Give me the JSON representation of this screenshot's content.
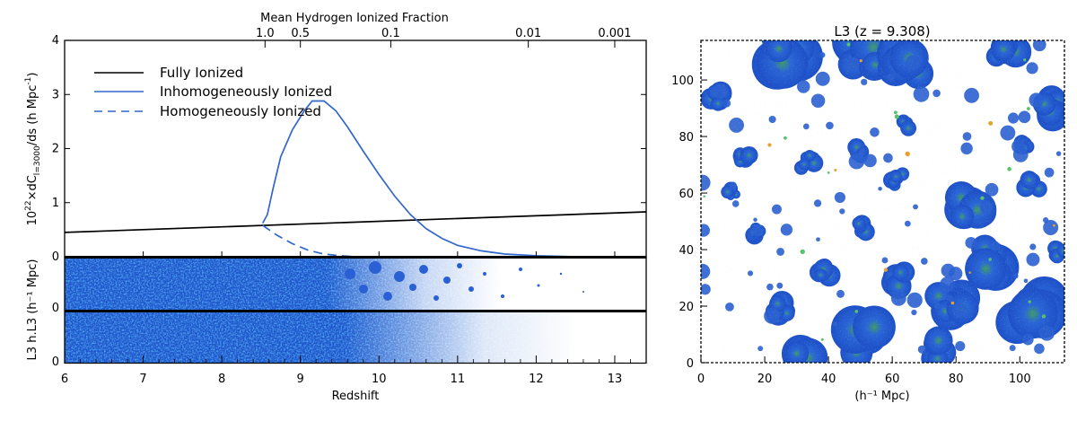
{
  "chart_data": [
    {
      "type": "line",
      "panel": "left-top",
      "xlabel": "Redshift",
      "ylabel": "10²²×dC_l=3000/ds (h Mpc⁻¹)",
      "ylabel_parts": {
        "pre": "10",
        "exp": "22",
        "mid": "×dC",
        "sub": "l=3000",
        "post": "/ds (h Mpc",
        "exp2": "-1",
        "end": ")"
      },
      "top_axis_label": "Mean Hydrogen Ionized Fraction",
      "top_ticks": [
        {
          "label": "1.0",
          "z": 8.55
        },
        {
          "label": "0.5",
          "z": 9.0
        },
        {
          "label": "0.1",
          "z": 10.15
        },
        {
          "label": "0.01",
          "z": 11.9
        },
        {
          "label": "0.001",
          "z": 13.0
        }
      ],
      "xlim": [
        6,
        13.4
      ],
      "ylim": [
        0,
        4
      ],
      "xticks": [
        "6",
        "7",
        "8",
        "9",
        "10",
        "11",
        "12",
        "13"
      ],
      "yticks": [
        "0",
        "1",
        "2",
        "3",
        "4"
      ],
      "series": [
        {
          "name": "Fully Ionized",
          "color": "#000000",
          "style": "solid",
          "x": [
            6,
            13.4
          ],
          "y": [
            0.45,
            0.83
          ]
        },
        {
          "name": "Inhomogeneously Ionized",
          "color": "#3366cc",
          "style": "solid",
          "x": [
            8.52,
            8.58,
            8.65,
            8.75,
            8.9,
            9.05,
            9.15,
            9.3,
            9.45,
            9.6,
            9.8,
            10.0,
            10.2,
            10.4,
            10.6,
            10.8,
            11.0,
            11.3,
            11.6,
            12.0,
            12.5
          ],
          "y": [
            0.62,
            0.78,
            1.25,
            1.85,
            2.35,
            2.7,
            2.88,
            2.88,
            2.7,
            2.4,
            1.95,
            1.52,
            1.12,
            0.78,
            0.52,
            0.34,
            0.21,
            0.11,
            0.05,
            0.02,
            0.0
          ]
        },
        {
          "name": "Homogeneously Ionized",
          "color": "#3366cc",
          "style": "dashed",
          "x": [
            8.52,
            8.7,
            8.9,
            9.1,
            9.3,
            9.5,
            9.7
          ],
          "y": [
            0.58,
            0.4,
            0.24,
            0.12,
            0.05,
            0.02,
            0.0
          ]
        }
      ]
    },
    {
      "type": "heatmap",
      "panel": "left-bottom",
      "ylabel": "L3 h.L3 (h⁻¹ Mpc)",
      "strips": [
        {
          "name": "L3",
          "yticks": [
            "0"
          ]
        },
        {
          "name": "h.L3",
          "yticks": [
            "0"
          ]
        }
      ]
    },
    {
      "type": "heatmap",
      "panel": "right",
      "title": "L3 (z = 9.308)",
      "xlabel": "(h⁻¹ Mpc)",
      "xlim": [
        0,
        114
      ],
      "ylim": [
        0,
        114
      ],
      "xticks": [
        "0",
        "20",
        "40",
        "60",
        "80",
        "100"
      ],
      "yticks": [
        "0",
        "20",
        "40",
        "60",
        "80",
        "100"
      ]
    }
  ]
}
